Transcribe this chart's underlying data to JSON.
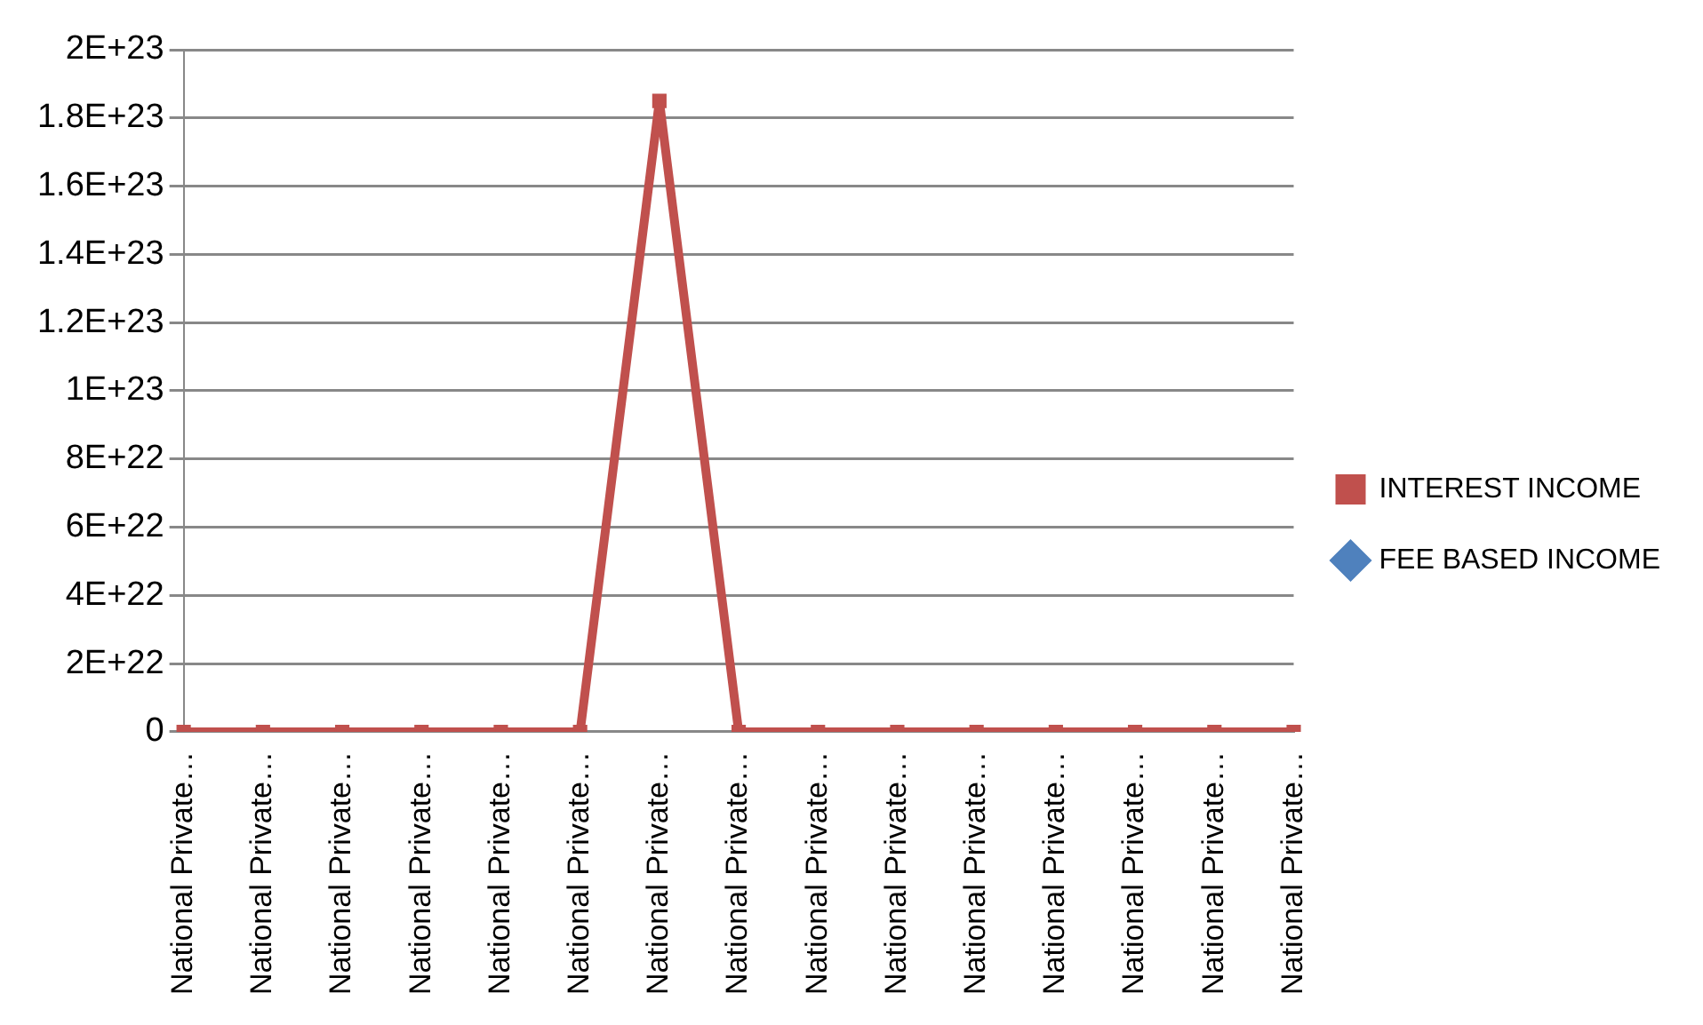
{
  "chart_data": {
    "type": "line",
    "categories": [
      "National Private…",
      "National Private…",
      "National Private…",
      "National Private…",
      "National Private…",
      "National Private…",
      "National Private…",
      "National Private…",
      "National Private…",
      "National Private…",
      "National Private…",
      "National Private…",
      "National Private…",
      "National Private…",
      "National Private…"
    ],
    "series": [
      {
        "name": "INTEREST INCOME",
        "color": "#c0504d",
        "marker": "square",
        "values": [
          0,
          0,
          0,
          0,
          0,
          0,
          1.85e+23,
          0,
          0,
          0,
          0,
          0,
          0,
          0,
          0
        ]
      },
      {
        "name": "FEE BASED INCOME",
        "color": "#4f81bd",
        "marker": "diamond",
        "values": [
          null,
          null,
          null,
          null,
          null,
          null,
          null,
          null,
          null,
          null,
          null,
          null,
          null,
          null,
          null
        ]
      }
    ],
    "ylim": [
      0,
      2e+23
    ],
    "yticks": [
      0,
      {
        "value": 2e+22,
        "label": "2E+22"
      },
      {
        "value": 4e+22,
        "label": "4E+22"
      },
      {
        "value": 6e+22,
        "label": "6E+22"
      },
      {
        "value": 8e+22,
        "label": "8E+22"
      },
      {
        "value": 1e+23,
        "label": "1E+23"
      },
      {
        "value": 1.2e+23,
        "label": "1.2E+23"
      },
      {
        "value": 1.4e+23,
        "label": "1.4E+23"
      },
      {
        "value": 1.6e+23,
        "label": "1.6E+23"
      },
      {
        "value": 1.8e+23,
        "label": "1.8E+23"
      },
      {
        "value": 2e+23,
        "label": "2E+23"
      }
    ],
    "grid": "y",
    "legend": "right"
  }
}
